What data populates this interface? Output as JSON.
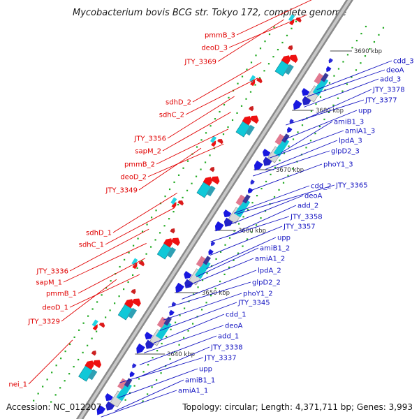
{
  "title": "Mycobacterium bovis BCG str. Tokyo 172, complete genome",
  "footer": {
    "accession": "Accession: NC_012207",
    "summary": "Topology: circular; Length: 4,371,711 bp; Genes: 3,993"
  },
  "colors": {
    "forward_label": "#e00000",
    "reverse_label": "#1010c0",
    "forward_gene": "#ee1111",
    "reverse_gene": "#1818e0",
    "rna_gene": "#11c8d8",
    "backbone": "#a0a0a0",
    "tick": "#22aa22"
  },
  "ticks": [
    {
      "label": "3690 kbp"
    },
    {
      "label": "3680 kbp"
    },
    {
      "label": "3670 kbp"
    },
    {
      "label": "3660 kbp"
    },
    {
      "label": "3650 kbp"
    },
    {
      "label": "3640 kbp"
    }
  ],
  "forward_labels": [
    "pmmB_3",
    "deoD_3",
    "JTY_3369",
    "sdhD_2",
    "sdhC_2",
    "JTY_3356",
    "sapM_2",
    "pmmB_2",
    "deoD_2",
    "JTY_3349",
    "sdhD_1",
    "sdhC_1",
    "JTY_3336",
    "sapM_1",
    "pmmB_1",
    "deoD_1",
    "JTY_3329",
    "nei_1"
  ],
  "reverse_labels": [
    "cdd_3",
    "deoA",
    "add_3",
    "JTY_3378",
    "JTY_3377",
    "upp",
    "amiB1_3",
    "amiA1_3",
    "lpdA_3",
    "glpD2_3",
    "phoY1_3",
    "JTY_3365",
    "cdd_2",
    "deoA",
    "add_2",
    "JTY_3358",
    "JTY_3357",
    "upp",
    "amiB1_2",
    "amiA1_2",
    "lpdA_2",
    "glpD2_2",
    "phoY1_2",
    "JTY_3345",
    "cdd_1",
    "deoA",
    "add_1",
    "JTY_3338",
    "JTY_3337",
    "upp",
    "amiB1_1",
    "amiA1_1"
  ]
}
